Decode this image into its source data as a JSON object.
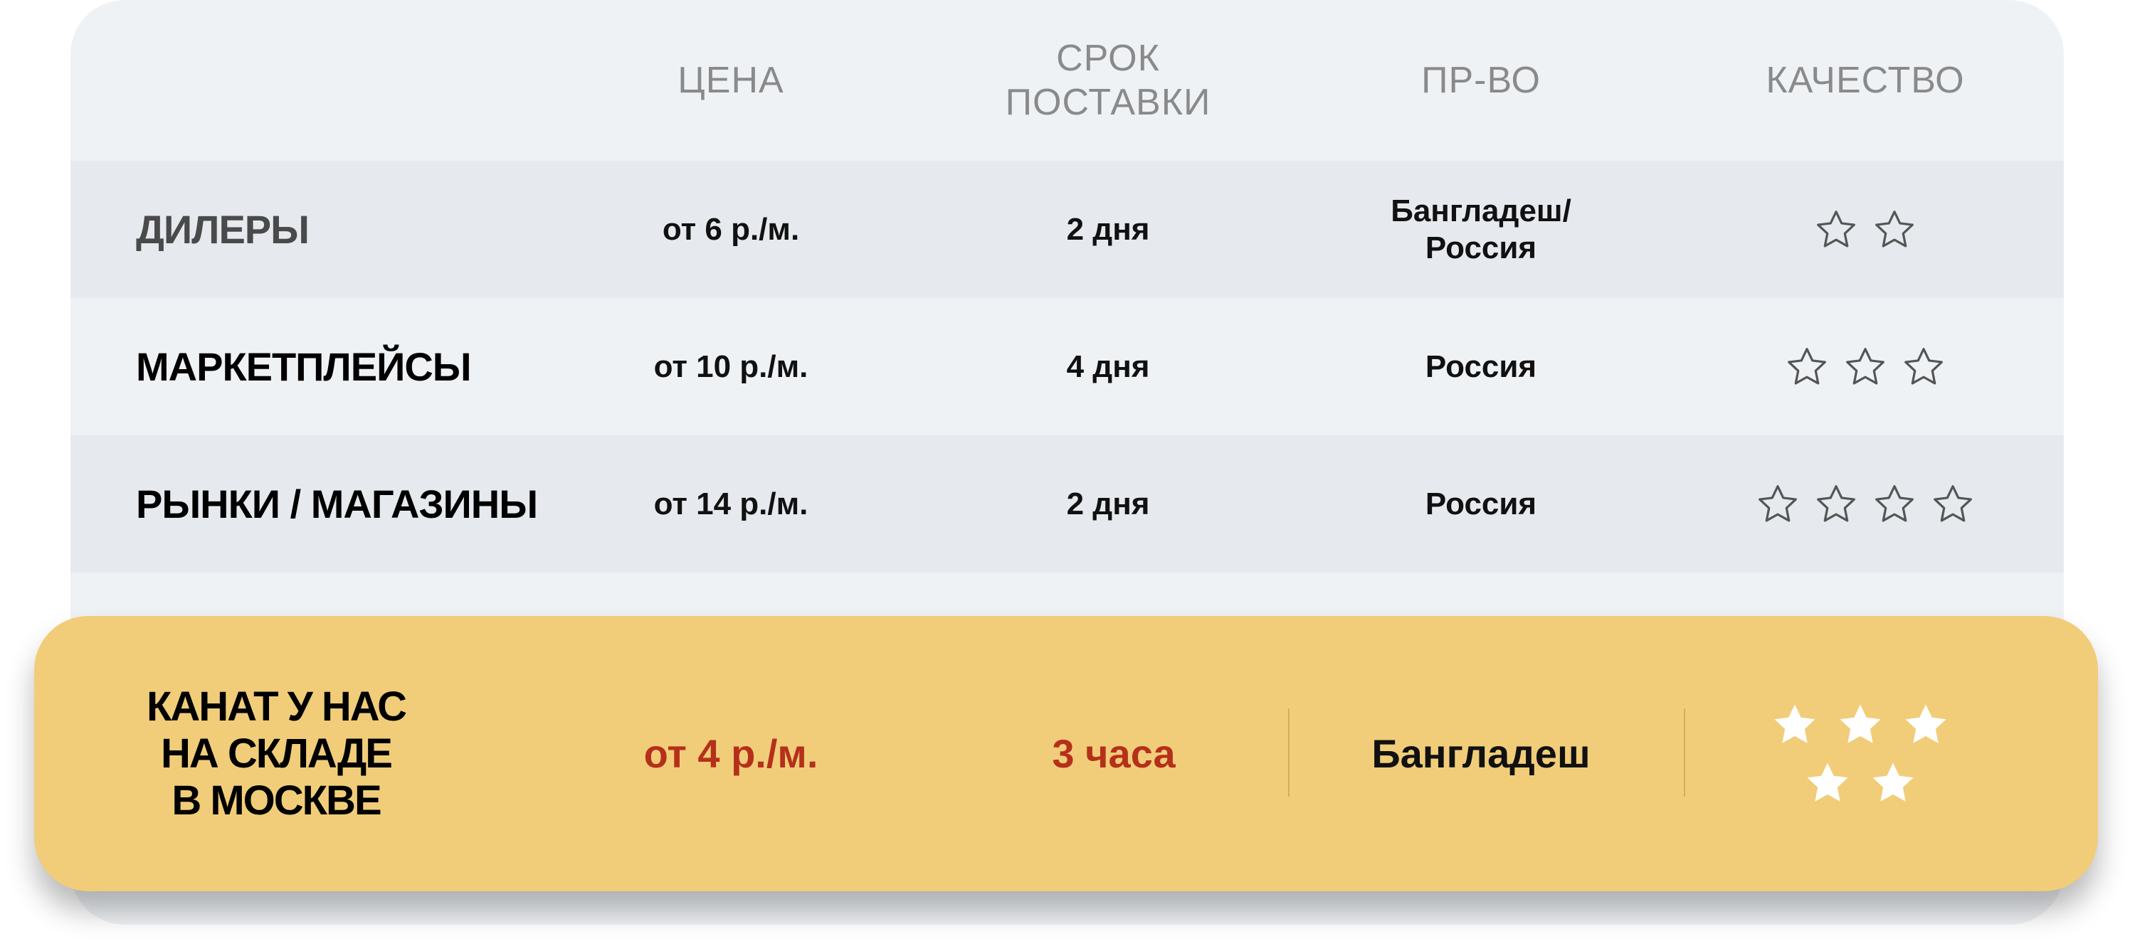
{
  "header": {
    "columns": [
      "",
      "ЦЕНА",
      "СРОК\nПОСТАВКИ",
      "ПР-ВО",
      "КАЧЕСТВО"
    ],
    "price": "ЦЕНА",
    "delivery_line1": "СРОК",
    "delivery_line2": "ПОСТАВКИ",
    "origin": "ПР-ВО",
    "quality": "КАЧЕСТВО"
  },
  "rows": [
    {
      "name": "ДИЛЕРЫ",
      "price": "от 6 р./м.",
      "delivery": "2 дня",
      "origin_line1": "Бангладеш/",
      "origin_line2": "Россия",
      "stars": 2
    },
    {
      "name": "МАРКЕТПЛЕЙСЫ",
      "price": "от 10 р./м.",
      "delivery": "4 дня",
      "origin_line1": "Россия",
      "origin_line2": "",
      "stars": 3
    },
    {
      "name": "РЫНКИ / МАГАЗИНЫ",
      "price": "от 14 р./м.",
      "delivery": "2 дня",
      "origin_line1": "Россия",
      "origin_line2": "",
      "stars": 4
    }
  ],
  "highlight": {
    "name_line1": "КАНАТ У НАС",
    "name_line2": "НА СКЛАДЕ",
    "name_line3": "В МОСКВЕ",
    "price": "от 4 р./м.",
    "delivery": "3 часа",
    "origin": "Бангладеш",
    "stars": 5
  },
  "colors": {
    "accent": "#f1cd7a",
    "price_red": "#b5301a",
    "row_dark": "#e6eaee",
    "row_light": "#eff2f5"
  },
  "icons": {
    "star_outline": "star-outline-icon",
    "star_filled": "star-filled-icon"
  }
}
